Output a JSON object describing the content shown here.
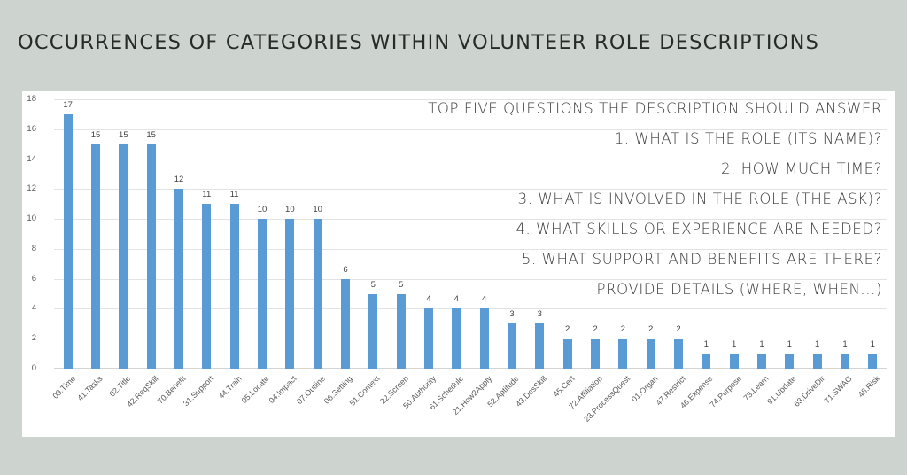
{
  "page": {
    "title": "OCCURRENCES OF CATEGORIES WITHIN VOLUNTEER ROLE DESCRIPTIONS",
    "background_color": "#cdd3cf",
    "panel_color": "#ffffff"
  },
  "questions": {
    "heading": "TOP FIVE QUESTIONS THE DESCRIPTION SHOULD ANSWER",
    "items": [
      "1. WHAT IS THE ROLE (ITS NAME)?",
      "2. HOW MUCH TIME?",
      "3. WHAT IS INVOLVED IN THE ROLE (THE ASK)?",
      "4. WHAT SKILLS OR EXPERIENCE ARE NEEDED?",
      "5. WHAT SUPPORT AND BENEFITS ARE THERE?",
      "PROVIDE DETAILS (WHERE, WHEN...)"
    ]
  },
  "chart_data": {
    "type": "bar",
    "title": "OCCURRENCES OF CATEGORIES WITHIN VOLUNTEER ROLE DESCRIPTIONS",
    "xlabel": "",
    "ylabel": "",
    "ylim": [
      0,
      18
    ],
    "yticks": [
      0,
      2,
      4,
      6,
      8,
      10,
      12,
      14,
      16,
      18
    ],
    "grid": true,
    "legend": "none",
    "data_labels": true,
    "bar_color": "#5b9bd5",
    "categories": [
      "09.Time",
      "41.Tasks",
      "02.Title",
      "42.ReqSkill",
      "70.Benefit",
      "31.Support",
      "44.Train",
      "05.Locate",
      "04.Impact",
      "07.Outline",
      "06.Setting",
      "51.Context",
      "22.Screen",
      "50.Authority",
      "61.Schedule",
      "21.How2Apply",
      "52.Aptitude",
      "43.DesSkill",
      "45.Cert",
      "72.Affiliation",
      "23.ProcessQuest",
      "01.Organ",
      "47.Restrict",
      "46.Expense",
      "74.Purpose",
      "73.Learn",
      "91.Update",
      "63.DriveDir",
      "71.SWAG",
      "48.Risk"
    ],
    "values": [
      17,
      15,
      15,
      15,
      12,
      11,
      11,
      10,
      10,
      10,
      6,
      5,
      5,
      4,
      4,
      4,
      3,
      3,
      2,
      2,
      2,
      2,
      2,
      1,
      1,
      1,
      1,
      1,
      1,
      1
    ]
  }
}
